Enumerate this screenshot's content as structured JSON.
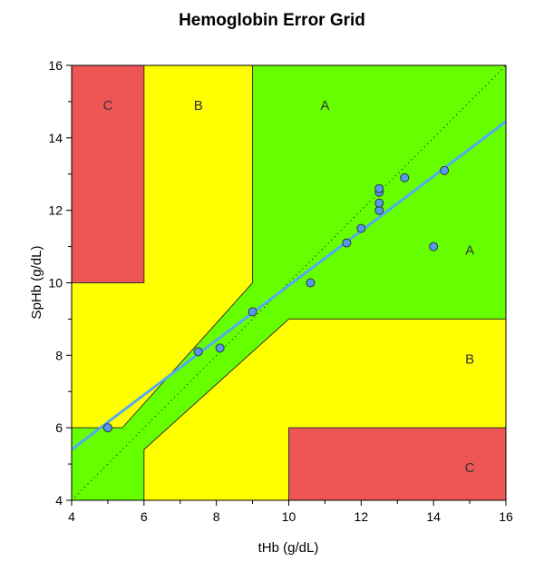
{
  "chart_data": {
    "type": "scatter",
    "title": "Hemoglobin Error Grid",
    "xlabel": "tHb (g/dL)",
    "ylabel": "SpHb (g/dL)",
    "xlim": [
      4,
      16
    ],
    "ylim": [
      4,
      16
    ],
    "xticks": [
      4,
      6,
      8,
      10,
      12,
      14,
      16
    ],
    "yticks": [
      4,
      6,
      8,
      10,
      12,
      14,
      16
    ],
    "grid": false,
    "zones": [
      {
        "label": "A",
        "color": "#66FF00",
        "polygon": [
          [
            4,
            4
          ],
          [
            4,
            6
          ],
          [
            5.4,
            6
          ],
          [
            9,
            10
          ],
          [
            9,
            16
          ],
          [
            16,
            16
          ],
          [
            16,
            9
          ],
          [
            10,
            9
          ],
          [
            6,
            5.4
          ],
          [
            6,
            4
          ]
        ]
      },
      {
        "label": "C",
        "color": "#EE5555",
        "polygon": [
          [
            4,
            10
          ],
          [
            4,
            16
          ],
          [
            6,
            16
          ],
          [
            6,
            10
          ]
        ]
      },
      {
        "label": "C",
        "color": "#EE5555",
        "polygon": [
          [
            10,
            4
          ],
          [
            10,
            6
          ],
          [
            16,
            6
          ],
          [
            16,
            4
          ]
        ]
      }
    ],
    "background_zone": {
      "label": "B",
      "color": "#FFFF00"
    },
    "zone_labels": [
      {
        "text": "C",
        "x": 5,
        "y": 14.9
      },
      {
        "text": "B",
        "x": 7.5,
        "y": 14.9
      },
      {
        "text": "A",
        "x": 11,
        "y": 14.9
      },
      {
        "text": "A",
        "x": 15,
        "y": 10.9
      },
      {
        "text": "B",
        "x": 15,
        "y": 7.9
      },
      {
        "text": "C",
        "x": 15,
        "y": 4.9
      }
    ],
    "points": [
      [
        5,
        6
      ],
      [
        7.5,
        8.1
      ],
      [
        8.1,
        8.2
      ],
      [
        9,
        9.2
      ],
      [
        10.6,
        10
      ],
      [
        11.6,
        11.1
      ],
      [
        12,
        11.5
      ],
      [
        12.5,
        12
      ],
      [
        12.5,
        12.2
      ],
      [
        12.5,
        12.5
      ],
      [
        12.5,
        12.6
      ],
      [
        13.2,
        12.9
      ],
      [
        14,
        11
      ],
      [
        14.3,
        13.1
      ]
    ],
    "point_color": "#5599EE",
    "regression_line": {
      "x": [
        4,
        16
      ],
      "y": [
        5.4,
        14.45
      ],
      "color": "#55AAEE"
    },
    "identity_line": {
      "x": [
        4,
        16
      ],
      "y": [
        4,
        16
      ]
    }
  }
}
